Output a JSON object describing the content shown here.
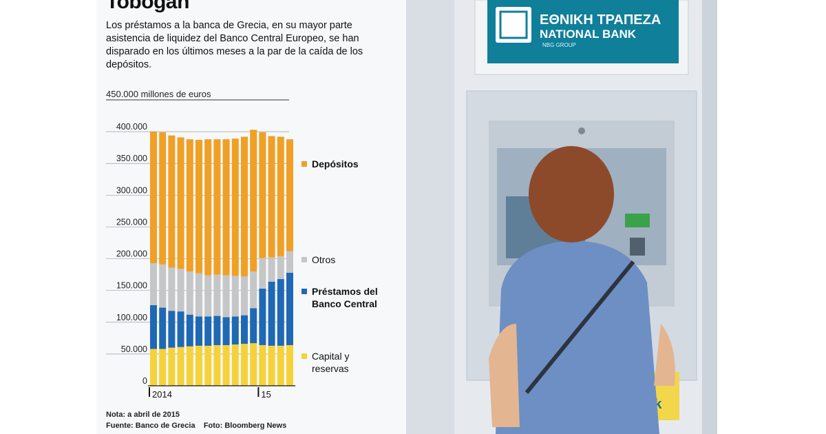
{
  "header": {
    "title": "Tobogán",
    "subtitle": "Los préstamos a la banca de Grecia, en su mayor parte asistencia de liquidez del Banco Central Europeo, se han disparado en los últimos meses a la par de la caída de los depósitos."
  },
  "chart_data": {
    "type": "bar",
    "stacked": true,
    "unit_label": "450.000 millones de euros",
    "ylim": [
      0,
      450000
    ],
    "y_ticks": [
      "0",
      "50.000",
      "100.000",
      "150.000",
      "200.000",
      "250.000",
      "300.000",
      "350.000",
      "400.000"
    ],
    "x_tick_labels": [
      {
        "label": "2014",
        "index": 0
      },
      {
        "label": "15",
        "index": 12
      }
    ],
    "categories": [
      "2014-01",
      "2014-02",
      "2014-03",
      "2014-04",
      "2014-05",
      "2014-06",
      "2014-07",
      "2014-08",
      "2014-09",
      "2014-10",
      "2014-11",
      "2014-12",
      "2015-01",
      "2015-02",
      "2015-03",
      "2015-04"
    ],
    "series": [
      {
        "name": "Capital y reservas",
        "color": "#f5d23a",
        "values": [
          58000,
          58000,
          60000,
          61000,
          62000,
          63000,
          63000,
          64000,
          64000,
          65000,
          66000,
          67000,
          64000,
          63000,
          63000,
          64000
        ]
      },
      {
        "name": "Préstamos del Banco Central",
        "color": "#1f69b4",
        "values": [
          69000,
          65000,
          58000,
          56000,
          50000,
          46000,
          46000,
          46000,
          44000,
          44000,
          45000,
          55000,
          89000,
          101000,
          105000,
          114000
        ]
      },
      {
        "name": "Otros",
        "color": "#c5c6c8",
        "values": [
          66000,
          68000,
          68000,
          67000,
          68000,
          68000,
          65000,
          65000,
          66000,
          64000,
          61000,
          58000,
          48000,
          38000,
          36000,
          34000
        ]
      },
      {
        "name": "Depósitos",
        "color": "#f0a025",
        "values": [
          207000,
          208000,
          208000,
          207000,
          208000,
          210000,
          214000,
          213000,
          214000,
          216000,
          220000,
          223000,
          198000,
          191000,
          188000,
          176000
        ]
      }
    ],
    "legend_order": [
      "Depósitos",
      "Otros",
      "Préstamos del\nBanco Central",
      "Capital y\nreservas"
    ],
    "legend_bold": [
      true,
      false,
      true,
      false
    ],
    "legend_placement": "right"
  },
  "footer": {
    "note": "Nota: a abril de 2015",
    "source": "Fuente: Banco de Grecia    Foto: Bloomberg News"
  },
  "photo": {
    "sign_line1": "ΕΘΝΙΚΗ ΤΡΑΠΕΖΑ",
    "sign_line2": "NATIONAL BANK",
    "sign_line3": "NBG GROUP",
    "machine_text": "nk"
  }
}
